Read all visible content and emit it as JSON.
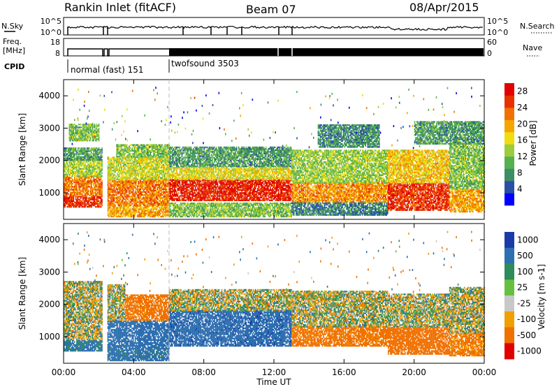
{
  "header": {
    "station": "Rankin Inlet (fitACF)",
    "beam": "Beam 07",
    "date": "08/Apr/2015"
  },
  "top_panels": {
    "nsky_label": "N.Sky",
    "nsky_ticks": [
      "10^5",
      "10^0"
    ],
    "nsearch_label": "N.Search",
    "nsearch_ticks": [
      "10^5",
      "10^0"
    ],
    "freq_label_1": "Freq.",
    "freq_label_2": "[MHz]",
    "freq_ticks": [
      "18",
      "8"
    ],
    "nave_label": "Nave",
    "nave_ticks": [
      "60",
      "0"
    ],
    "cpid_label": "CPID",
    "cpid_modes": [
      {
        "label": "normal (fast) 151",
        "start_hour": 0.0
      },
      {
        "label": "twofsound 3503",
        "start_hour": 6.0
      }
    ]
  },
  "chart_data": [
    {
      "type": "heatmap",
      "name": "power",
      "xlabel": "",
      "ylabel": "Slant Range [km]",
      "xlim": [
        0,
        24
      ],
      "ylim": [
        180,
        4500
      ],
      "yticks": [
        1000,
        2000,
        3000,
        4000
      ],
      "colorbar": {
        "label": "Power [dB]",
        "ticks": [
          4,
          8,
          12,
          16,
          20,
          24,
          28
        ],
        "range": [
          0,
          30
        ],
        "colors": [
          "#0000ff",
          "#2a4fa8",
          "#3d8c64",
          "#55b050",
          "#9acc3c",
          "#f0dc10",
          "#f5a500",
          "#f07000",
          "#e83000",
          "#e00000"
        ]
      },
      "bands": [
        {
          "x0": 0.0,
          "x1": 2.2,
          "y0": 550,
          "y1": 900,
          "value": 26
        },
        {
          "x0": 0.0,
          "x1": 2.2,
          "y0": 900,
          "y1": 1500,
          "value": 22
        },
        {
          "x0": 0.0,
          "x1": 2.2,
          "y0": 1500,
          "y1": 2000,
          "value": 14
        },
        {
          "x0": 0.0,
          "x1": 2.2,
          "y0": 2000,
          "y1": 2400,
          "value": 9
        },
        {
          "x0": 0.3,
          "x1": 2.0,
          "y0": 2600,
          "y1": 3100,
          "value": 12
        },
        {
          "x0": 2.5,
          "x1": 6.0,
          "y0": 250,
          "y1": 600,
          "value": 20
        },
        {
          "x0": 2.5,
          "x1": 6.0,
          "y0": 600,
          "y1": 1400,
          "value": 22
        },
        {
          "x0": 2.5,
          "x1": 6.0,
          "y0": 1400,
          "y1": 2100,
          "value": 15
        },
        {
          "x0": 3.0,
          "x1": 6.0,
          "y0": 2100,
          "y1": 2500,
          "value": 12
        },
        {
          "x0": 6.0,
          "x1": 13.0,
          "y0": 750,
          "y1": 1400,
          "value": 27
        },
        {
          "x0": 6.0,
          "x1": 13.0,
          "y0": 1400,
          "y1": 1800,
          "value": 16
        },
        {
          "x0": 6.0,
          "x1": 13.0,
          "y0": 1800,
          "y1": 2400,
          "value": 9
        },
        {
          "x0": 6.0,
          "x1": 13.0,
          "y0": 250,
          "y1": 700,
          "value": 12
        },
        {
          "x0": 13.0,
          "x1": 18.5,
          "y0": 700,
          "y1": 1300,
          "value": 21
        },
        {
          "x0": 13.0,
          "x1": 18.5,
          "y0": 1300,
          "y1": 2300,
          "value": 13
        },
        {
          "x0": 13.0,
          "x1": 18.5,
          "y0": 300,
          "y1": 700,
          "value": 7
        },
        {
          "x0": 14.5,
          "x1": 18.0,
          "y0": 2400,
          "y1": 3100,
          "value": 8
        },
        {
          "x0": 18.5,
          "x1": 22.0,
          "y0": 450,
          "y1": 1300,
          "value": 26
        },
        {
          "x0": 18.5,
          "x1": 22.0,
          "y0": 1300,
          "y1": 2300,
          "value": 18
        },
        {
          "x0": 22.0,
          "x1": 24.0,
          "y0": 400,
          "y1": 1100,
          "value": 20
        },
        {
          "x0": 22.0,
          "x1": 24.0,
          "y0": 1100,
          "y1": 2500,
          "value": 12
        },
        {
          "x0": 20.0,
          "x1": 24.0,
          "y0": 2500,
          "y1": 3200,
          "value": 9
        }
      ]
    },
    {
      "type": "heatmap",
      "name": "velocity",
      "xlabel": "Time UT",
      "ylabel": "Slant Range [km]",
      "xlim": [
        0,
        24
      ],
      "ylim": [
        180,
        4500
      ],
      "xticks": [
        "00:00",
        "04:00",
        "08:00",
        "12:00",
        "16:00",
        "20:00",
        "00:00"
      ],
      "yticks": [
        1000,
        2000,
        3000,
        4000
      ],
      "colorbar": {
        "label": "Velocity [m s-1]",
        "ticks": [
          "1000",
          "500",
          "100",
          "25",
          "-25",
          "-100",
          "-500",
          "-1000"
        ],
        "values": [
          1000,
          500,
          100,
          25,
          -25,
          -100,
          -500,
          -1000
        ],
        "colors": [
          "#1a3aa8",
          "#2d6fb0",
          "#2e8c5a",
          "#66c040",
          "#c8c8c8",
          "#f0a000",
          "#f07000",
          "#e00000"
        ]
      },
      "bands": [
        {
          "x0": 0.0,
          "x1": 2.2,
          "y0": 550,
          "y1": 900,
          "value": 150
        },
        {
          "x0": 0.0,
          "x1": 2.2,
          "y0": 900,
          "y1": 1600,
          "value": 0
        },
        {
          "x0": 0.0,
          "x1": 2.2,
          "y0": 1600,
          "y1": 2700,
          "value": 0
        },
        {
          "x0": 2.5,
          "x1": 6.0,
          "y0": 250,
          "y1": 700,
          "value": 200
        },
        {
          "x0": 2.5,
          "x1": 6.0,
          "y0": 700,
          "y1": 1500,
          "value": 300
        },
        {
          "x0": 3.5,
          "x1": 6.0,
          "y0": 1500,
          "y1": 2300,
          "value": -200
        },
        {
          "x0": 2.5,
          "x1": 3.5,
          "y0": 1500,
          "y1": 2600,
          "value": 0
        },
        {
          "x0": 6.0,
          "x1": 13.0,
          "y0": 700,
          "y1": 1800,
          "value": 400
        },
        {
          "x0": 6.0,
          "x1": 13.0,
          "y0": 1800,
          "y1": 2450,
          "value": 0
        },
        {
          "x0": 13.0,
          "x1": 18.5,
          "y0": 700,
          "y1": 1300,
          "value": -200
        },
        {
          "x0": 13.0,
          "x1": 18.5,
          "y0": 1300,
          "y1": 2400,
          "value": 0
        },
        {
          "x0": 18.5,
          "x1": 22.0,
          "y0": 450,
          "y1": 1300,
          "value": -300
        },
        {
          "x0": 18.5,
          "x1": 22.0,
          "y0": 1300,
          "y1": 2300,
          "value": 0
        },
        {
          "x0": 22.0,
          "x1": 24.0,
          "y0": 400,
          "y1": 1100,
          "value": -150
        },
        {
          "x0": 22.0,
          "x1": 24.0,
          "y0": 1100,
          "y1": 2500,
          "value": 0
        }
      ]
    }
  ]
}
